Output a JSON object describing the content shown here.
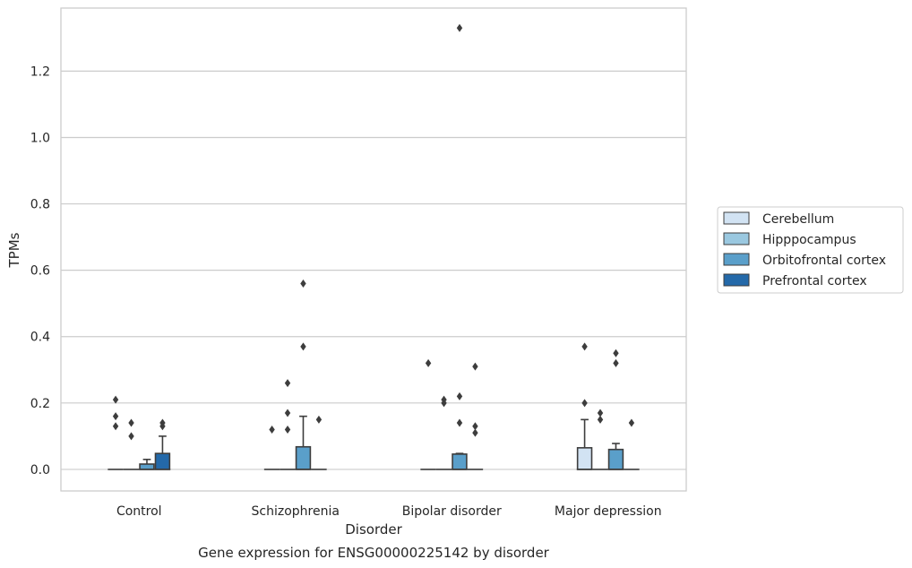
{
  "chart_data": {
    "type": "box",
    "title": "",
    "caption": "Gene expression for ENSG00000225142 by disorder",
    "xlabel": "Disorder",
    "ylabel": "TPMs",
    "ylim": [
      -0.065,
      1.39
    ],
    "yticks": [
      "0.0",
      "0.2",
      "0.4",
      "0.6",
      "0.8",
      "1.0",
      "1.2"
    ],
    "grid": "horizontal",
    "legend_position": "right",
    "categories": [
      "Control",
      "Schizophrenia",
      "Bipolar disorder",
      "Major depression"
    ],
    "series": [
      {
        "name": "Cerebellum",
        "color": "#d2e3f3",
        "boxes": [
          {
            "q1": 0,
            "median": 0,
            "q3": 0,
            "whisker_low": 0,
            "whisker_high": 0,
            "outliers": [
              0.21,
              0.16,
              0.13
            ]
          },
          {
            "q1": 0,
            "median": 0,
            "q3": 0,
            "whisker_low": 0,
            "whisker_high": 0,
            "outliers": [
              0.12
            ]
          },
          {
            "q1": 0,
            "median": 0,
            "q3": 0,
            "whisker_low": 0,
            "whisker_high": 0,
            "outliers": [
              0.32
            ]
          },
          {
            "q1": 0,
            "median": 0,
            "q3": 0.065,
            "whisker_low": 0,
            "whisker_high": 0.15,
            "outliers": [
              0.37,
              0.2
            ]
          }
        ]
      },
      {
        "name": "Hipppocampus",
        "color": "#9ac8e0",
        "boxes": [
          {
            "q1": 0,
            "median": 0,
            "q3": 0,
            "whisker_low": 0,
            "whisker_high": 0,
            "outliers": [
              0.14,
              0.1
            ]
          },
          {
            "q1": 0,
            "median": 0,
            "q3": 0,
            "whisker_low": 0,
            "whisker_high": 0,
            "outliers": [
              0.26,
              0.17,
              0.12
            ]
          },
          {
            "q1": 0,
            "median": 0,
            "q3": 0,
            "whisker_low": 0,
            "whisker_high": 0,
            "outliers": [
              0.21,
              0.2
            ]
          },
          {
            "q1": 0,
            "median": 0,
            "q3": 0,
            "whisker_low": 0,
            "whisker_high": 0,
            "outliers": [
              0.17,
              0.15
            ]
          }
        ]
      },
      {
        "name": "Orbitofrontal cortex",
        "color": "#5a9fca",
        "boxes": [
          {
            "q1": 0,
            "median": 0,
            "q3": 0.016,
            "whisker_low": 0,
            "whisker_high": 0.03,
            "outliers": []
          },
          {
            "q1": 0,
            "median": 0,
            "q3": 0.068,
            "whisker_low": 0,
            "whisker_high": 0.16,
            "outliers": [
              0.56,
              0.37
            ]
          },
          {
            "q1": 0,
            "median": 0,
            "q3": 0.046,
            "whisker_low": 0,
            "whisker_high": 0.048,
            "outliers": [
              1.33,
              0.22,
              0.14
            ]
          },
          {
            "q1": 0,
            "median": 0,
            "q3": 0.06,
            "whisker_low": 0,
            "whisker_high": 0.078,
            "outliers": [
              0.35,
              0.32
            ]
          }
        ]
      },
      {
        "name": "Prefrontal cortex",
        "color": "#2469a9",
        "boxes": [
          {
            "q1": 0,
            "median": 0,
            "q3": 0.048,
            "whisker_low": 0,
            "whisker_high": 0.1,
            "outliers": [
              0.14,
              0.13
            ]
          },
          {
            "q1": 0,
            "median": 0,
            "q3": 0,
            "whisker_low": 0,
            "whisker_high": 0,
            "outliers": [
              0.15
            ]
          },
          {
            "q1": 0,
            "median": 0,
            "q3": 0,
            "whisker_low": 0,
            "whisker_high": 0,
            "outliers": [
              0.31,
              0.13,
              0.11
            ]
          },
          {
            "q1": 0,
            "median": 0,
            "q3": 0,
            "whisker_low": 0,
            "whisker_high": 0,
            "outliers": [
              0.14
            ]
          }
        ]
      }
    ]
  }
}
